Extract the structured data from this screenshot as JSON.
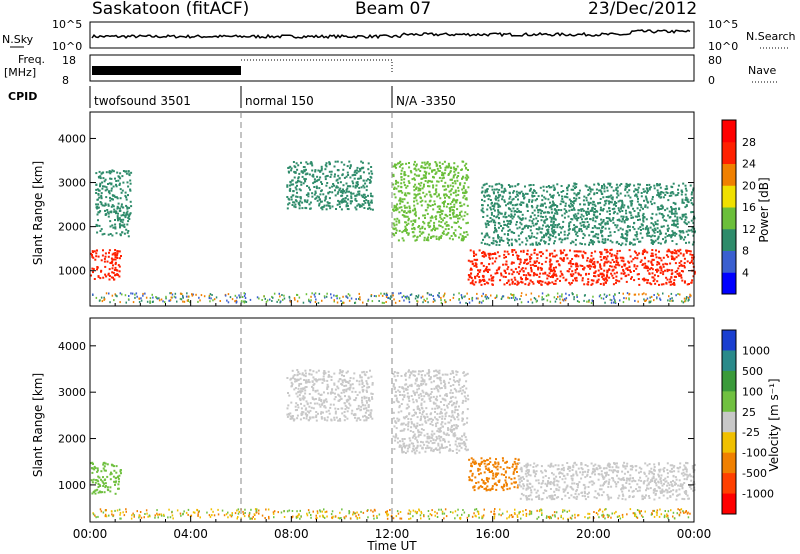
{
  "header": {
    "station": "Saskatoon (fitACF)",
    "beam": "Beam 07",
    "date": "23/Dec/2012"
  },
  "noise_panel": {
    "left_label": "N.Sky",
    "left_ticks": [
      "10^5",
      "10^0"
    ],
    "right_label": "N.Search",
    "right_ticks": [
      "10^5",
      "10^0"
    ]
  },
  "freq_panel": {
    "left_label_1": "Freq.",
    "left_label_2": "[MHz]",
    "left_ticks": [
      "18",
      "8"
    ],
    "right_label": "Nave",
    "right_ticks": [
      "80",
      "0"
    ]
  },
  "cpid_panel": {
    "label": "CPID",
    "segments": [
      {
        "name": "twofsound 3501",
        "start_hour": 0,
        "end_hour": 6
      },
      {
        "name": "normal 150",
        "start_hour": 6,
        "end_hour": 12
      },
      {
        "name": "N/A -3350",
        "start_hour": 12,
        "end_hour": 24
      }
    ]
  },
  "chart_data": [
    {
      "type": "heatmap",
      "parameter": "Power",
      "ylabel": "Slant Range [km]",
      "yticks": [
        1000,
        2000,
        3000,
        4000
      ],
      "ylim": [
        200,
        4600
      ],
      "xlim": [
        0,
        24
      ],
      "colorbar": {
        "label": "Power [dB]",
        "ticks": [
          "4",
          "8",
          "12",
          "16",
          "20",
          "24",
          "28"
        ],
        "colors": [
          "#0000ff",
          "#3a5fd0",
          "#2e8b6a",
          "#6bbf3a",
          "#f0e000",
          "#f08000",
          "#ff2000",
          "#ff0000"
        ]
      },
      "regions": [
        {
          "desc": "auroral backscatter 00-01h",
          "t0": 0.0,
          "t1": 1.2,
          "r0": 800,
          "r1": 1500,
          "power_db": 26
        },
        {
          "desc": "far range echoes 00-01h",
          "t0": 0.2,
          "t1": 1.6,
          "r0": 1800,
          "r1": 3300,
          "power_db": 8
        },
        {
          "desc": "echoes 08-11h",
          "t0": 7.8,
          "t1": 11.2,
          "r0": 2400,
          "r1": 3500,
          "power_db": 8
        },
        {
          "desc": "band 12-15h descending",
          "t0": 12.0,
          "t1": 15.0,
          "r0": 1700,
          "r1": 3500,
          "power_db": 12
        },
        {
          "desc": "strong band 15-24h",
          "t0": 15.0,
          "t1": 24.0,
          "r0": 700,
          "r1": 1500,
          "power_db": 26
        },
        {
          "desc": "upper scatter 15-24h",
          "t0": 15.5,
          "t1": 24.0,
          "r0": 1600,
          "r1": 3000,
          "power_db": 10
        }
      ]
    },
    {
      "type": "heatmap",
      "parameter": "Velocity",
      "ylabel": "Slant Range [km]",
      "yticks": [
        1000,
        2000,
        3000,
        4000
      ],
      "ylim": [
        200,
        4600
      ],
      "xlim": [
        0,
        24
      ],
      "xticks": [
        "00:00",
        "04:00",
        "08:00",
        "12:00",
        "16:00",
        "20:00",
        "00:00"
      ],
      "xlabel": "Time UT",
      "colorbar": {
        "label": "Velocity [m s⁻¹]",
        "ticks": [
          "1000",
          "500",
          "100",
          "25",
          "-25",
          "-100",
          "-500",
          "-1000"
        ],
        "colors": [
          "#1a3fd0",
          "#2a8a8a",
          "#3a9a3a",
          "#70c040",
          "#c8c8c8",
          "#f0c000",
          "#f08000",
          "#ff4000",
          "#ff0000"
        ]
      },
      "regions": [
        {
          "desc": "low velocity 00-01h",
          "t0": 0.0,
          "t1": 1.2,
          "r0": 800,
          "r1": 1500,
          "velocity": 80
        },
        {
          "desc": "ground scatter 08-11h",
          "t0": 7.8,
          "t1": 11.2,
          "r0": 2400,
          "r1": 3500,
          "velocity": 0
        },
        {
          "desc": "ground scatter 12-15h",
          "t0": 12.0,
          "t1": 15.0,
          "r0": 1700,
          "r1": 3500,
          "velocity": 0
        },
        {
          "desc": "negative velocity band 15-17h",
          "t0": 15.0,
          "t1": 17.0,
          "r0": 900,
          "r1": 1600,
          "velocity": -150
        },
        {
          "desc": "ground scatter band 17-24h",
          "t0": 17.0,
          "t1": 24.0,
          "r0": 700,
          "r1": 1500,
          "velocity": 0
        }
      ]
    }
  ]
}
